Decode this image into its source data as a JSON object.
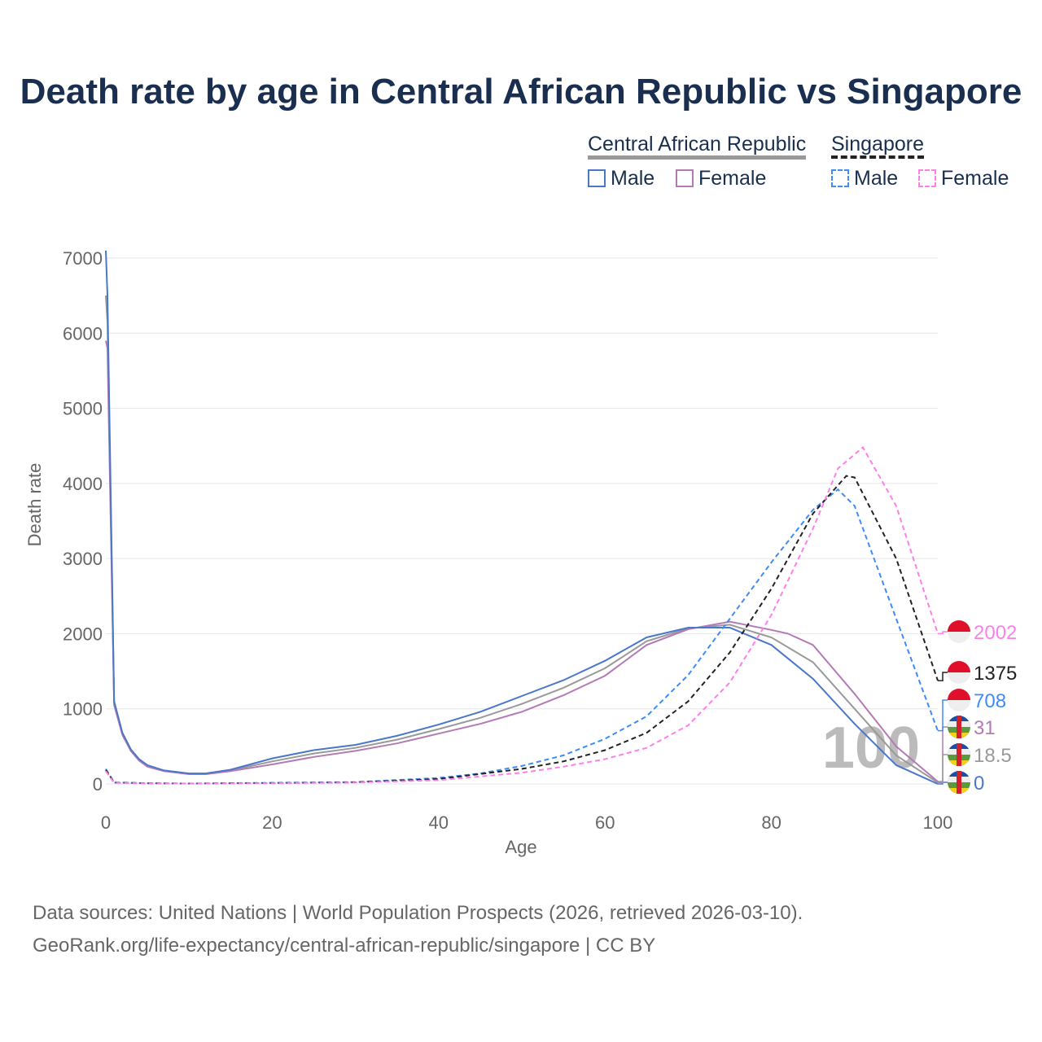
{
  "chart_data": {
    "type": "line",
    "title": "Death rate by age in Central African Republic vs Singapore",
    "xlabel": "Age",
    "ylabel": "Death rate",
    "xlim": [
      0,
      100
    ],
    "ylim": [
      0,
      7000
    ],
    "xticks": [
      0,
      20,
      40,
      60,
      80,
      100
    ],
    "yticks": [
      0,
      1000,
      2000,
      3000,
      4000,
      5000,
      6000,
      7000
    ],
    "grid": "horizontal",
    "legend": {
      "placement": "top-right",
      "groups": [
        {
          "name": "Central African Republic",
          "items": [
            "Male",
            "Female"
          ]
        },
        {
          "name": "Singapore",
          "items": [
            "Male",
            "Female"
          ]
        }
      ]
    },
    "series": [
      {
        "name": "CAR Male",
        "color": "#4a77c9",
        "dash": false,
        "x": [
          0,
          0.2,
          1,
          2,
          3,
          4,
          5,
          7,
          10,
          12,
          15,
          20,
          25,
          30,
          35,
          40,
          45,
          50,
          55,
          60,
          65,
          70,
          75,
          80,
          85,
          90,
          95,
          100
        ],
        "y": [
          7100,
          6500,
          1100,
          680,
          460,
          330,
          250,
          180,
          140,
          140,
          190,
          340,
          450,
          520,
          640,
          790,
          960,
          1170,
          1380,
          1640,
          1950,
          2080,
          2080,
          1850,
          1400,
          800,
          250,
          0
        ],
        "end_label": "0"
      },
      {
        "name": "CAR Female",
        "color": "#b37ab5",
        "dash": false,
        "x": [
          0,
          0.2,
          1,
          2,
          3,
          4,
          5,
          7,
          10,
          12,
          15,
          20,
          25,
          30,
          35,
          40,
          45,
          50,
          55,
          60,
          65,
          70,
          75,
          80,
          82,
          85,
          90,
          95,
          100
        ],
        "y": [
          5900,
          5800,
          1050,
          650,
          440,
          310,
          230,
          170,
          130,
          130,
          170,
          260,
          360,
          440,
          540,
          670,
          800,
          960,
          1180,
          1440,
          1850,
          2060,
          2160,
          2050,
          2000,
          1850,
          1200,
          500,
          31
        ],
        "end_label": "31"
      },
      {
        "name": "CAR Both",
        "color": "#999999",
        "dash": false,
        "x": [
          0,
          0.2,
          1,
          2,
          3,
          4,
          5,
          7,
          10,
          12,
          15,
          20,
          25,
          30,
          35,
          40,
          45,
          50,
          55,
          60,
          65,
          70,
          75,
          80,
          85,
          90,
          95,
          100
        ],
        "y": [
          6500,
          6150,
          1075,
          665,
          450,
          320,
          240,
          175,
          135,
          135,
          180,
          300,
          405,
          480,
          590,
          730,
          880,
          1065,
          1280,
          1540,
          1900,
          2070,
          2120,
          1950,
          1620,
          1000,
          380,
          18.5
        ],
        "end_label": "18.5"
      },
      {
        "name": "Singapore Male",
        "color": "#3d8bfd",
        "dash": true,
        "x": [
          0,
          1,
          5,
          10,
          20,
          30,
          40,
          45,
          50,
          55,
          60,
          65,
          70,
          75,
          80,
          85,
          88,
          90,
          95,
          100
        ],
        "y": [
          200,
          20,
          10,
          5,
          15,
          25,
          80,
          140,
          240,
          380,
          600,
          900,
          1450,
          2200,
          2950,
          3650,
          3920,
          3700,
          2200,
          708
        ],
        "end_label": "708"
      },
      {
        "name": "Singapore Female",
        "color": "#ff7ee8",
        "dash": true,
        "x": [
          0,
          1,
          5,
          10,
          20,
          30,
          40,
          50,
          55,
          60,
          65,
          70,
          75,
          80,
          85,
          88,
          91,
          95,
          100
        ],
        "y": [
          170,
          15,
          8,
          4,
          10,
          18,
          50,
          150,
          230,
          330,
          480,
          780,
          1350,
          2250,
          3400,
          4200,
          4480,
          3700,
          2002
        ],
        "end_label": "2002"
      },
      {
        "name": "Singapore Both",
        "color": "#222222",
        "dash": true,
        "x": [
          0,
          1,
          5,
          10,
          20,
          30,
          40,
          50,
          55,
          60,
          65,
          70,
          75,
          80,
          85,
          89,
          90,
          95,
          100
        ],
        "y": [
          185,
          18,
          9,
          5,
          12,
          22,
          65,
          200,
          300,
          450,
          680,
          1100,
          1750,
          2600,
          3600,
          4100,
          4080,
          3000,
          1375
        ],
        "end_label": "1375"
      }
    ],
    "hover_age": "100"
  },
  "source_line1": "Data sources: United Nations | World Population Prospects (2026, retrieved 2026-03-10).",
  "source_line2": "GeoRank.org/life-expectancy/central-african-republic/singapore | CC BY",
  "legend": {
    "car": "Central African Republic",
    "sg": "Singapore",
    "male": "Male",
    "female": "Female"
  }
}
